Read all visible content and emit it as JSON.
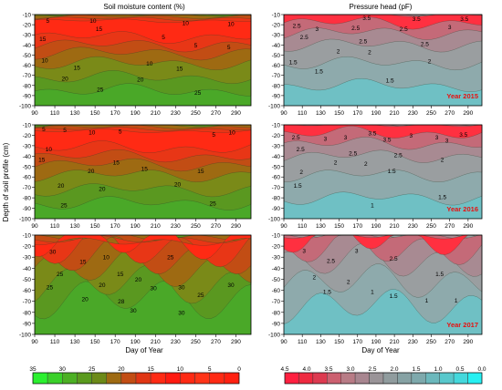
{
  "figure": {
    "ylabel": "Depth of soil profile (cm)",
    "xlabel": "Day of Year",
    "y_ticks": [
      -10,
      -20,
      -30,
      -40,
      -50,
      -60,
      -70,
      -80,
      -90,
      -100
    ],
    "x_ticks": [
      90,
      110,
      130,
      150,
      170,
      190,
      210,
      230,
      250,
      270,
      290
    ],
    "xlim": [
      90,
      305
    ],
    "ylim": [
      -100,
      -10
    ]
  },
  "chart_data": [
    {
      "type": "heatmap",
      "title": "Soil moisture content (%)",
      "row": 0,
      "variable": "soil_moisture",
      "contour_labels": [
        {
          "x": 103,
          "y": -16,
          "v": "5"
        },
        {
          "x": 148,
          "y": -16,
          "v": "10"
        },
        {
          "x": 240,
          "y": -18,
          "v": "10"
        },
        {
          "x": 285,
          "y": -19,
          "v": "10"
        },
        {
          "x": 154,
          "y": -24,
          "v": "15"
        },
        {
          "x": 98,
          "y": -34,
          "v": "15"
        },
        {
          "x": 218,
          "y": -32,
          "v": "5"
        },
        {
          "x": 250,
          "y": -40,
          "v": "5"
        },
        {
          "x": 283,
          "y": -42,
          "v": "5"
        },
        {
          "x": 100,
          "y": -55,
          "v": "10"
        },
        {
          "x": 204,
          "y": -58,
          "v": "10"
        },
        {
          "x": 132,
          "y": -62,
          "v": "15"
        },
        {
          "x": 234,
          "y": -63,
          "v": "15"
        },
        {
          "x": 120,
          "y": -73,
          "v": "20"
        },
        {
          "x": 195,
          "y": -74,
          "v": "20"
        },
        {
          "x": 155,
          "y": -84,
          "v": "25"
        },
        {
          "x": 252,
          "y": -87,
          "v": "25"
        }
      ]
    },
    {
      "type": "heatmap",
      "title": "Pressure head (pF)",
      "row": 0,
      "variable": "pressure_head",
      "year_label": "Year 2015",
      "contour_labels": [
        {
          "x": 180,
          "y": -13,
          "v": "3.5"
        },
        {
          "x": 234,
          "y": -14,
          "v": "3.5"
        },
        {
          "x": 286,
          "y": -14,
          "v": "3.5"
        },
        {
          "x": 104,
          "y": -21,
          "v": "2.5"
        },
        {
          "x": 126,
          "y": -24,
          "v": "3"
        },
        {
          "x": 168,
          "y": -23,
          "v": "2.5"
        },
        {
          "x": 220,
          "y": -24,
          "v": "2.5"
        },
        {
          "x": 270,
          "y": -22,
          "v": "3"
        },
        {
          "x": 112,
          "y": -32,
          "v": "2.5"
        },
        {
          "x": 176,
          "y": -36,
          "v": "2.5"
        },
        {
          "x": 243,
          "y": -39,
          "v": "2.5"
        },
        {
          "x": 149,
          "y": -46,
          "v": "2"
        },
        {
          "x": 183,
          "y": -47,
          "v": "2"
        },
        {
          "x": 248,
          "y": -56,
          "v": "2"
        },
        {
          "x": 100,
          "y": -57,
          "v": "1.5"
        },
        {
          "x": 128,
          "y": -66,
          "v": "1.5"
        },
        {
          "x": 205,
          "y": -75,
          "v": "1.5"
        }
      ]
    },
    {
      "type": "heatmap",
      "row": 1,
      "variable": "soil_moisture",
      "contour_labels": [
        {
          "x": 99,
          "y": -14,
          "v": "5"
        },
        {
          "x": 120,
          "y": -15,
          "v": "5"
        },
        {
          "x": 147,
          "y": -17,
          "v": "10"
        },
        {
          "x": 175,
          "y": -16,
          "v": "5"
        },
        {
          "x": 268,
          "y": -19,
          "v": "5"
        },
        {
          "x": 286,
          "y": -17,
          "v": "10"
        },
        {
          "x": 104,
          "y": -33,
          "v": "10"
        },
        {
          "x": 97,
          "y": -43,
          "v": "15"
        },
        {
          "x": 171,
          "y": -46,
          "v": "15"
        },
        {
          "x": 199,
          "y": -52,
          "v": "15"
        },
        {
          "x": 146,
          "y": -54,
          "v": "20"
        },
        {
          "x": 255,
          "y": -54,
          "v": "15"
        },
        {
          "x": 116,
          "y": -68,
          "v": "20"
        },
        {
          "x": 157,
          "y": -71,
          "v": "20"
        },
        {
          "x": 232,
          "y": -67,
          "v": "20"
        },
        {
          "x": 119,
          "y": -87,
          "v": "25"
        },
        {
          "x": 267,
          "y": -85,
          "v": "25"
        }
      ]
    },
    {
      "type": "heatmap",
      "row": 1,
      "variable": "pressure_head",
      "year_label": "Year 2016",
      "contour_labels": [
        {
          "x": 103,
          "y": -22,
          "v": "2.5"
        },
        {
          "x": 135,
          "y": -23,
          "v": "3"
        },
        {
          "x": 157,
          "y": -22,
          "v": "3"
        },
        {
          "x": 186,
          "y": -18,
          "v": "3.5"
        },
        {
          "x": 202,
          "y": -24,
          "v": "3.5"
        },
        {
          "x": 228,
          "y": -20,
          "v": "3"
        },
        {
          "x": 256,
          "y": -22,
          "v": "3"
        },
        {
          "x": 267,
          "y": -25,
          "v": "3"
        },
        {
          "x": 285,
          "y": -19,
          "v": "3.5"
        },
        {
          "x": 108,
          "y": -33,
          "v": "2.5"
        },
        {
          "x": 165,
          "y": -37,
          "v": "2.5"
        },
        {
          "x": 214,
          "y": -39,
          "v": "2.5"
        },
        {
          "x": 146,
          "y": -46,
          "v": "2"
        },
        {
          "x": 179,
          "y": -47,
          "v": "2"
        },
        {
          "x": 262,
          "y": -43,
          "v": "2"
        },
        {
          "x": 109,
          "y": -55,
          "v": "2"
        },
        {
          "x": 207,
          "y": -54,
          "v": "1.5"
        },
        {
          "x": 105,
          "y": -68,
          "v": "1.5"
        },
        {
          "x": 186,
          "y": -87,
          "v": "1"
        },
        {
          "x": 262,
          "y": -79,
          "v": "1.5"
        }
      ]
    },
    {
      "type": "heatmap",
      "row": 2,
      "variable": "soil_moisture",
      "contour_labels": [
        {
          "x": 108,
          "y": -25,
          "v": "30"
        },
        {
          "x": 161,
          "y": -30,
          "v": "10"
        },
        {
          "x": 138,
          "y": -34,
          "v": "15"
        },
        {
          "x": 225,
          "y": -30,
          "v": "25"
        },
        {
          "x": 115,
          "y": -45,
          "v": "25"
        },
        {
          "x": 175,
          "y": -45,
          "v": "15"
        },
        {
          "x": 193,
          "y": -50,
          "v": "20"
        },
        {
          "x": 105,
          "y": -57,
          "v": "25"
        },
        {
          "x": 157,
          "y": -55,
          "v": "20"
        },
        {
          "x": 208,
          "y": -58,
          "v": "30"
        },
        {
          "x": 236,
          "y": -57,
          "v": "30"
        },
        {
          "x": 285,
          "y": -55,
          "v": "30"
        },
        {
          "x": 176,
          "y": -70,
          "v": "28"
        },
        {
          "x": 140,
          "y": -68,
          "v": "20"
        },
        {
          "x": 255,
          "y": -64,
          "v": "25"
        },
        {
          "x": 188,
          "y": -78,
          "v": "30"
        },
        {
          "x": 236,
          "y": -80,
          "v": "30"
        }
      ]
    },
    {
      "type": "heatmap",
      "row": 2,
      "variable": "pressure_head",
      "year_label": "Year 2017",
      "contour_labels": [
        {
          "x": 112,
          "y": -24,
          "v": "3"
        },
        {
          "x": 169,
          "y": -24,
          "v": "3"
        },
        {
          "x": 141,
          "y": -33,
          "v": "2.5"
        },
        {
          "x": 209,
          "y": -31,
          "v": "2.5"
        },
        {
          "x": 123,
          "y": -48,
          "v": "2"
        },
        {
          "x": 160,
          "y": -52,
          "v": "2"
        },
        {
          "x": 259,
          "y": -45,
          "v": "1.5"
        },
        {
          "x": 137,
          "y": -61,
          "v": "1.5"
        },
        {
          "x": 186,
          "y": -61,
          "v": "1"
        },
        {
          "x": 209,
          "y": -65,
          "v": "1.5"
        },
        {
          "x": 245,
          "y": -69,
          "v": "1"
        },
        {
          "x": 277,
          "y": -69,
          "v": "1"
        }
      ]
    }
  ],
  "legends": {
    "moisture": {
      "labels": [
        "35",
        "30",
        "25",
        "20",
        "15",
        "10",
        "5",
        "0"
      ]
    },
    "pressure": {
      "labels": [
        "4.5",
        "4.0",
        "3.5",
        "3.0",
        "2.5",
        "2.0",
        "1.5",
        "1.0",
        "0.5",
        "0.0"
      ]
    }
  }
}
